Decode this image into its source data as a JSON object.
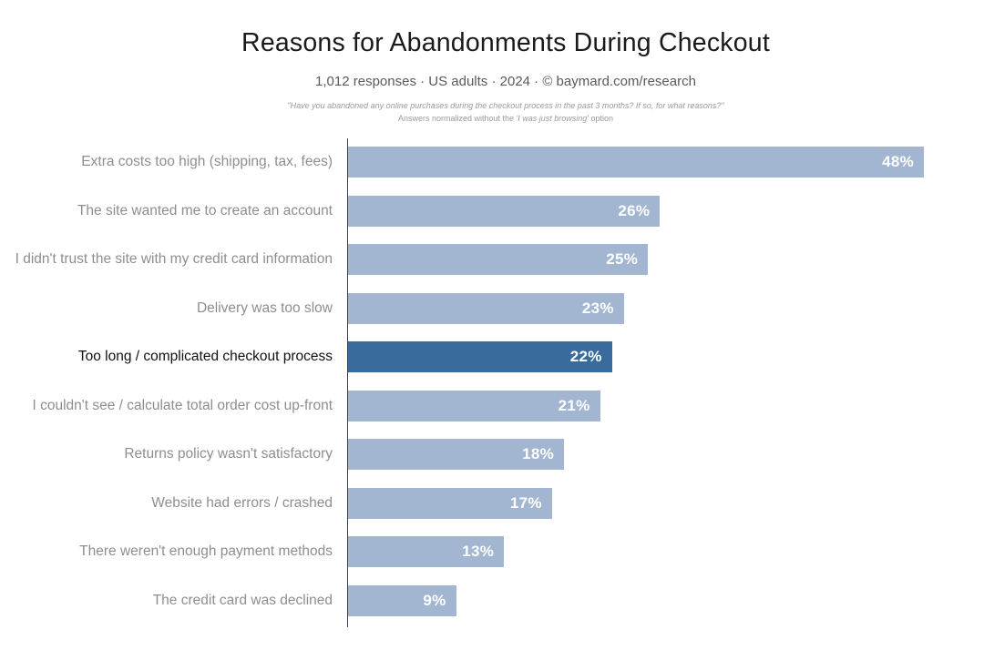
{
  "header": {
    "title": "Reasons for Abandonments During Checkout",
    "subtitle": "1,012 responses  ·  US adults  ·  2024  ·  ©  baymard.com/research",
    "footnote_line1": "\"Have you abandoned any online purchases during the checkout process in the past 3 months? If so, for what reasons?\"",
    "footnote_line2_prefix": "Answers normalized without the ",
    "footnote_line2_em": "'I was just browsing'",
    "footnote_line2_suffix": " option"
  },
  "chart_data": {
    "type": "bar",
    "orientation": "horizontal",
    "title": "Reasons for Abandonments During Checkout",
    "subtitle": "1,012 responses · US adults · 2024 · © baymard.com/research",
    "categories": [
      "Extra costs too high (shipping, tax, fees)",
      "The site wanted me to create an account",
      "I didn't trust the site with my credit card information",
      "Delivery was too slow",
      "Too long / complicated checkout process",
      "I couldn't see / calculate total order cost up-front",
      "Returns policy wasn't satisfactory",
      "Website had errors / crashed",
      "There weren't enough payment methods",
      "The credit card was declined"
    ],
    "values": [
      48,
      26,
      25,
      23,
      22,
      21,
      18,
      17,
      13,
      9
    ],
    "value_labels": [
      "48%",
      "26%",
      "25%",
      "23%",
      "22%",
      "21%",
      "18%",
      "17%",
      "13%",
      "9%"
    ],
    "highlighted_index": 4,
    "xlim": [
      0,
      48
    ],
    "grid": false,
    "legend": false,
    "colors": {
      "bar": "#a2b6d2",
      "bar_highlight": "#3a6b9d",
      "value_text": "#ffffff",
      "category_label": "#8e8e8e",
      "category_label_highlight": "#111111",
      "axis": "#3f3f3f"
    }
  }
}
